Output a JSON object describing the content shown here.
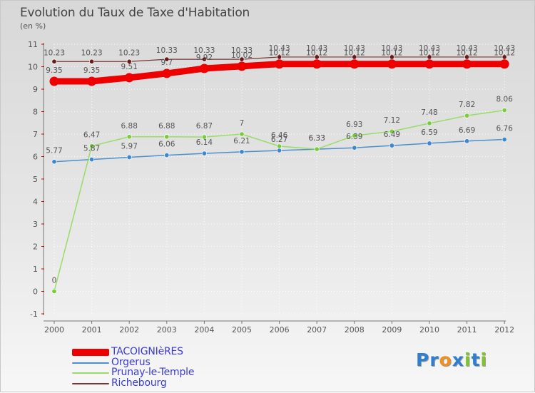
{
  "title": "Evolution du Taux de Taxe d'Habitation",
  "unit": "(en %)",
  "chart_data": {
    "type": "line",
    "title": "Evolution du Taux de Taxe d'Habitation",
    "ylabel": "(en %)",
    "xlabel": "",
    "ylim": [
      -1,
      11
    ],
    "yticks": [
      -1,
      0,
      1,
      2,
      3,
      4,
      5,
      6,
      7,
      8,
      9,
      10,
      11
    ],
    "categories": [
      "2000",
      "2001",
      "2002",
      "2003",
      "2004",
      "2005",
      "2006",
      "2007",
      "2008",
      "2009",
      "2010",
      "2011",
      "2012"
    ],
    "series": [
      {
        "name": "TACOIGNIèRES",
        "color": "#ee0000",
        "values": [
          9.35,
          9.35,
          9.51,
          9.7,
          9.92,
          10.02,
          10.12,
          10.12,
          10.12,
          10.12,
          10.12,
          10.12,
          10.12
        ]
      },
      {
        "name": "Orgerus",
        "color": "#4d8fcf",
        "values": [
          5.77,
          5.87,
          5.97,
          6.06,
          6.14,
          6.21,
          6.27,
          6.33,
          6.39,
          6.49,
          6.59,
          6.69,
          6.76
        ]
      },
      {
        "name": "Prunay-le-Temple",
        "color": "#99dd66",
        "values": [
          0,
          6.47,
          6.88,
          6.88,
          6.87,
          7,
          6.46,
          6.33,
          6.93,
          7.12,
          7.48,
          7.82,
          8.06
        ]
      },
      {
        "name": "Richebourg",
        "color": "#7a3535",
        "values": [
          10.23,
          10.23,
          10.23,
          10.33,
          10.33,
          10.33,
          10.43,
          10.43,
          10.43,
          10.43,
          10.43,
          10.43,
          10.43
        ]
      }
    ]
  },
  "legend": [
    {
      "label": "TACOIGNIèRES",
      "color": "#ee0000"
    },
    {
      "label": "Orgerus",
      "color": "#4d8fcf"
    },
    {
      "label": "Prunay-le-Temple",
      "color": "#99dd66"
    },
    {
      "label": "Richebourg",
      "color": "#7a3535"
    }
  ],
  "logo": {
    "text": "Proxiti",
    "letters": [
      "P",
      "r",
      "o",
      "x",
      "i",
      "t",
      "i"
    ],
    "colors": [
      "#2f7fd0",
      "#2f7fd0",
      "#f09020",
      "#2f7fd0",
      "#7ec42a",
      "#2f7fd0",
      "#7ec42a"
    ]
  }
}
